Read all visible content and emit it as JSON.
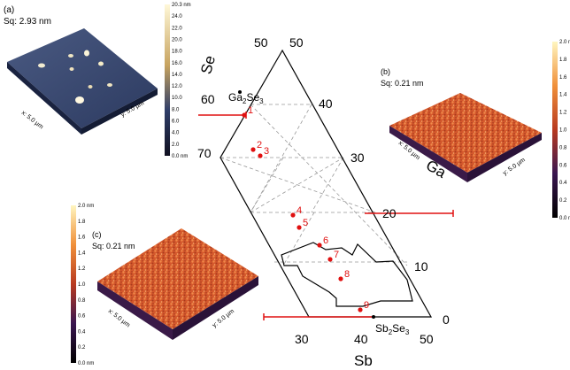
{
  "panels": [
    {
      "label": "(a)",
      "roughness": "Sq: 2.93 nm",
      "x_axis": "x: 5.0 µm",
      "y_axis": "y: 5.0 µm",
      "colorbar_ticks": [
        "20.3 nm",
        "24.0",
        "22.0",
        "20.0",
        "18.0",
        "16.0",
        "14.0",
        "12.0",
        "10.0",
        "8.0",
        "6.0",
        "4.0",
        "2.0",
        "0.0 nm"
      ]
    },
    {
      "label": "(b)",
      "roughness": "Sq: 0.21 nm",
      "x_axis": "x: 5.0 µm",
      "y_axis": "y: 5.0 µm",
      "colorbar_ticks": [
        "2.0 nm",
        "1.8",
        "1.6",
        "1.4",
        "1.2",
        "1.0",
        "0.8",
        "0.6",
        "0.4",
        "0.2",
        "0.0 nm"
      ]
    },
    {
      "label": "(c)",
      "roughness": "Sq: 0.21 nm",
      "x_axis": "x: 5.0 µm",
      "y_axis": "y: 5.0 µm",
      "colorbar_ticks": [
        "2.0 nm",
        "1.8",
        "1.6",
        "1.4",
        "1.2",
        "1.0",
        "0.8",
        "0.6",
        "0.4",
        "0.2",
        "0.0 nm"
      ]
    }
  ],
  "ternary": {
    "axis_se": "Se",
    "axis_ga": "Ga",
    "axis_sb": "Sb",
    "se_ticks": [
      "50",
      "60",
      "70"
    ],
    "ga_ticks": [
      "50",
      "40",
      "30",
      "20",
      "10",
      "0"
    ],
    "sb_ticks": [
      "30",
      "40",
      "50"
    ],
    "compound_ga2se3": "Ga",
    "compound_ga2se3_sub1": "2",
    "compound_ga2se3_mid": "Se",
    "compound_ga2se3_sub2": "3",
    "compound_sb2se3": "Sb",
    "compound_sb2se3_sub1": "2",
    "compound_sb2se3_mid": "Se",
    "compound_sb2se3_sub2": "3",
    "points": [
      {
        "id": "1",
        "se": 62.5,
        "ga": 37.5
      },
      {
        "id": "2",
        "se": 66.5,
        "ga": 31.5
      },
      {
        "id": "3",
        "se": 67,
        "ga": 30.5
      },
      {
        "id": "4",
        "se": 63,
        "ga": 20
      },
      {
        "id": "5",
        "se": 63,
        "ga": 17.5
      },
      {
        "id": "6",
        "se": 60.5,
        "ga": 14.5
      },
      {
        "id": "7",
        "se": 60,
        "ga": 12
      },
      {
        "id": "8",
        "se": 58.5,
        "ga": 8
      },
      {
        "id": "9",
        "se": 59,
        "ga": 1
      }
    ]
  },
  "colors": {
    "point": "#e01010",
    "line": "#000000",
    "grid": "#999999",
    "bracket": "#e01010"
  }
}
